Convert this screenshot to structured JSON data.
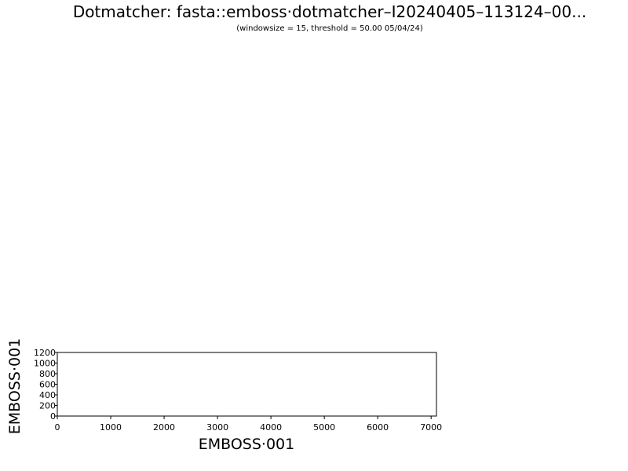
{
  "chart_data": {
    "type": "scatter",
    "title": "Dotmatcher: fasta::emboss·dotmatcher–I20240405–113124–00...",
    "subtitle": "(windowsize = 15, threshold = 50.00  05/04/24)",
    "xlabel": "EMBOSS·001",
    "ylabel": "EMBOSS·001",
    "xlim": [
      0,
      7100
    ],
    "ylim": [
      0,
      1200
    ],
    "xticks": [
      0,
      1000,
      2000,
      3000,
      4000,
      5000,
      6000,
      7000
    ],
    "yticks": [
      0,
      200,
      400,
      600,
      800,
      1000,
      1200
    ],
    "grid": false,
    "series": []
  }
}
